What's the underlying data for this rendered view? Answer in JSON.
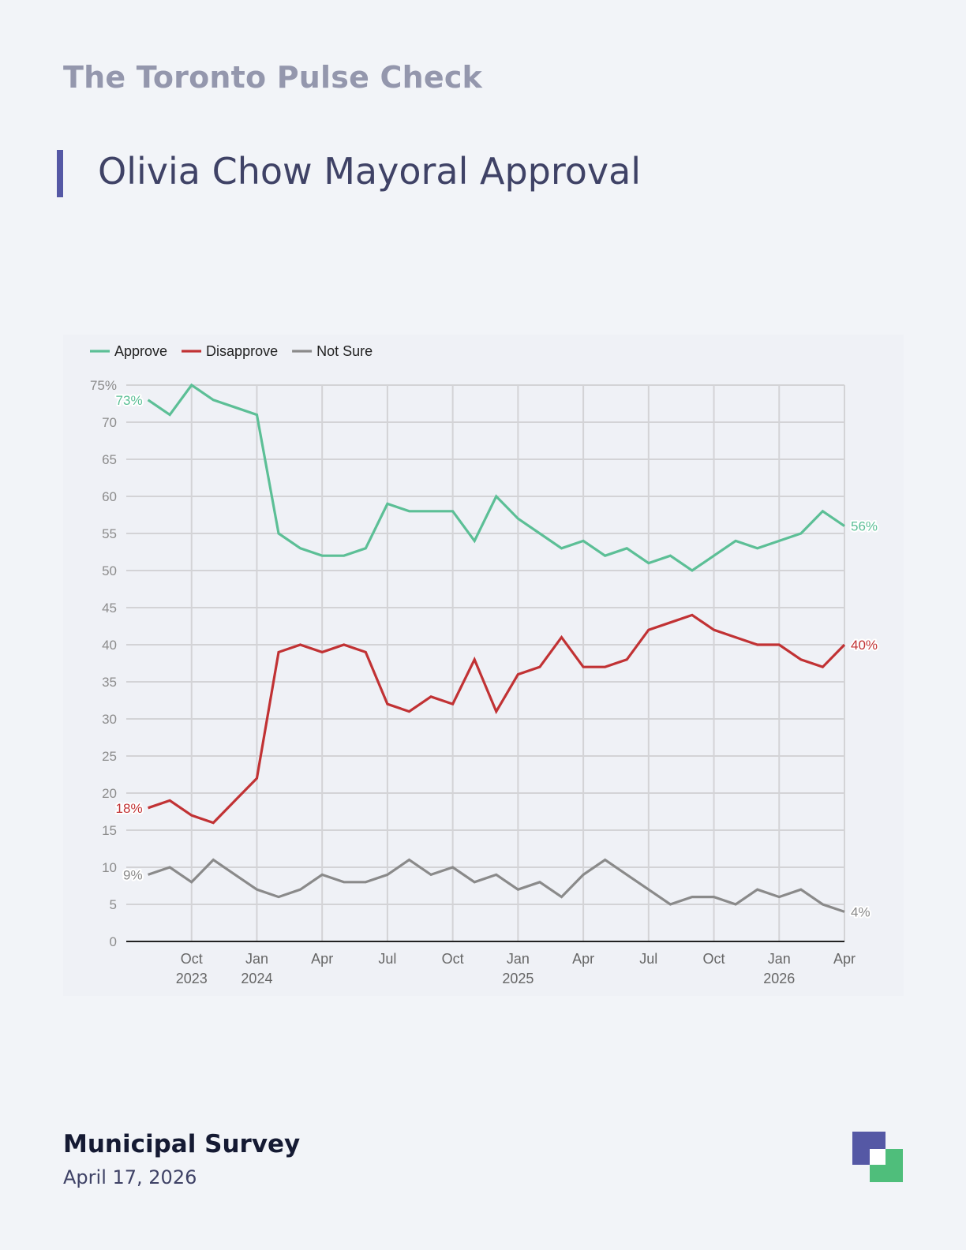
{
  "header": {
    "publication": "The Toronto Pulse Check",
    "title": "Olivia Chow Mayoral Approval"
  },
  "footer": {
    "survey": "Municipal Survey",
    "date": "April 17, 2026"
  },
  "colors": {
    "approve": "#5cbf96",
    "disapprove": "#c13234",
    "not_sure": "#8a8a8a",
    "accent": "#5558a5",
    "logo_green": "#4fbe7b"
  },
  "logo": {
    "icon": "overlapping-squares-logo"
  },
  "chart_data": {
    "type": "line",
    "yunit": "%",
    "ylim": [
      0,
      75
    ],
    "yticks": [
      0,
      5,
      10,
      15,
      20,
      25,
      30,
      35,
      40,
      45,
      50,
      55,
      60,
      65,
      70,
      75
    ],
    "ytick_labels": [
      "0",
      "5",
      "10",
      "15",
      "20",
      "25",
      "30",
      "35",
      "40",
      "45",
      "50",
      "55",
      "60",
      "65",
      "70",
      "75%"
    ],
    "xlim": [
      "2023-07",
      "2026-04"
    ],
    "grid": true,
    "legend_position": "top-left",
    "xticks": [
      {
        "date": "2023-10",
        "label": "Oct",
        "year": "2023"
      },
      {
        "date": "2024-01",
        "label": "Jan",
        "year": "2024"
      },
      {
        "date": "2024-04",
        "label": "Apr",
        "year": ""
      },
      {
        "date": "2024-07",
        "label": "Jul",
        "year": ""
      },
      {
        "date": "2024-10",
        "label": "Oct",
        "year": ""
      },
      {
        "date": "2025-01",
        "label": "Jan",
        "year": "2025"
      },
      {
        "date": "2025-04",
        "label": "Apr",
        "year": ""
      },
      {
        "date": "2025-07",
        "label": "Jul",
        "year": ""
      },
      {
        "date": "2025-10",
        "label": "Oct",
        "year": ""
      },
      {
        "date": "2026-01",
        "label": "Jan",
        "year": "2026"
      },
      {
        "date": "2026-04",
        "label": "Apr",
        "year": ""
      }
    ],
    "x": [
      "2023-08",
      "2023-09",
      "2023-10",
      "2023-11",
      "2023-12",
      "2024-01",
      "2024-02",
      "2024-03",
      "2024-04",
      "2024-05",
      "2024-06",
      "2024-07",
      "2024-08",
      "2024-09",
      "2024-10",
      "2024-11",
      "2024-12",
      "2025-01",
      "2025-02",
      "2025-03",
      "2025-04",
      "2025-05",
      "2025-06",
      "2025-07",
      "2025-08",
      "2025-09",
      "2025-10",
      "2025-11",
      "2025-12",
      "2026-01",
      "2026-02",
      "2026-03",
      "2026-04"
    ],
    "series": [
      {
        "name": "Approve",
        "key": "approve",
        "first_label": "73%",
        "last_label": "56%",
        "values": [
          73,
          71,
          75,
          73,
          72,
          71,
          55,
          53,
          52,
          52,
          53,
          59,
          58,
          58,
          58,
          54,
          60,
          57,
          55,
          53,
          54,
          52,
          53,
          51,
          52,
          50,
          52,
          54,
          53,
          54,
          55,
          58,
          56
        ]
      },
      {
        "name": "Disapprove",
        "key": "disapprove",
        "first_label": "18%",
        "last_label": "40%",
        "values": [
          18,
          19,
          17,
          16,
          19,
          22,
          39,
          40,
          39,
          40,
          39,
          32,
          31,
          33,
          32,
          38,
          31,
          36,
          37,
          41,
          37,
          37,
          38,
          42,
          43,
          44,
          42,
          41,
          40,
          40,
          38,
          37,
          40
        ]
      },
      {
        "name": "Not Sure",
        "key": "not_sure",
        "first_label": "9%",
        "last_label": "4%",
        "values": [
          9,
          10,
          8,
          11,
          9,
          7,
          6,
          7,
          9,
          8,
          8,
          9,
          11,
          9,
          10,
          8,
          9,
          7,
          8,
          6,
          9,
          11,
          9,
          7,
          5,
          6,
          6,
          5,
          7,
          6,
          7,
          5,
          4
        ]
      }
    ]
  }
}
